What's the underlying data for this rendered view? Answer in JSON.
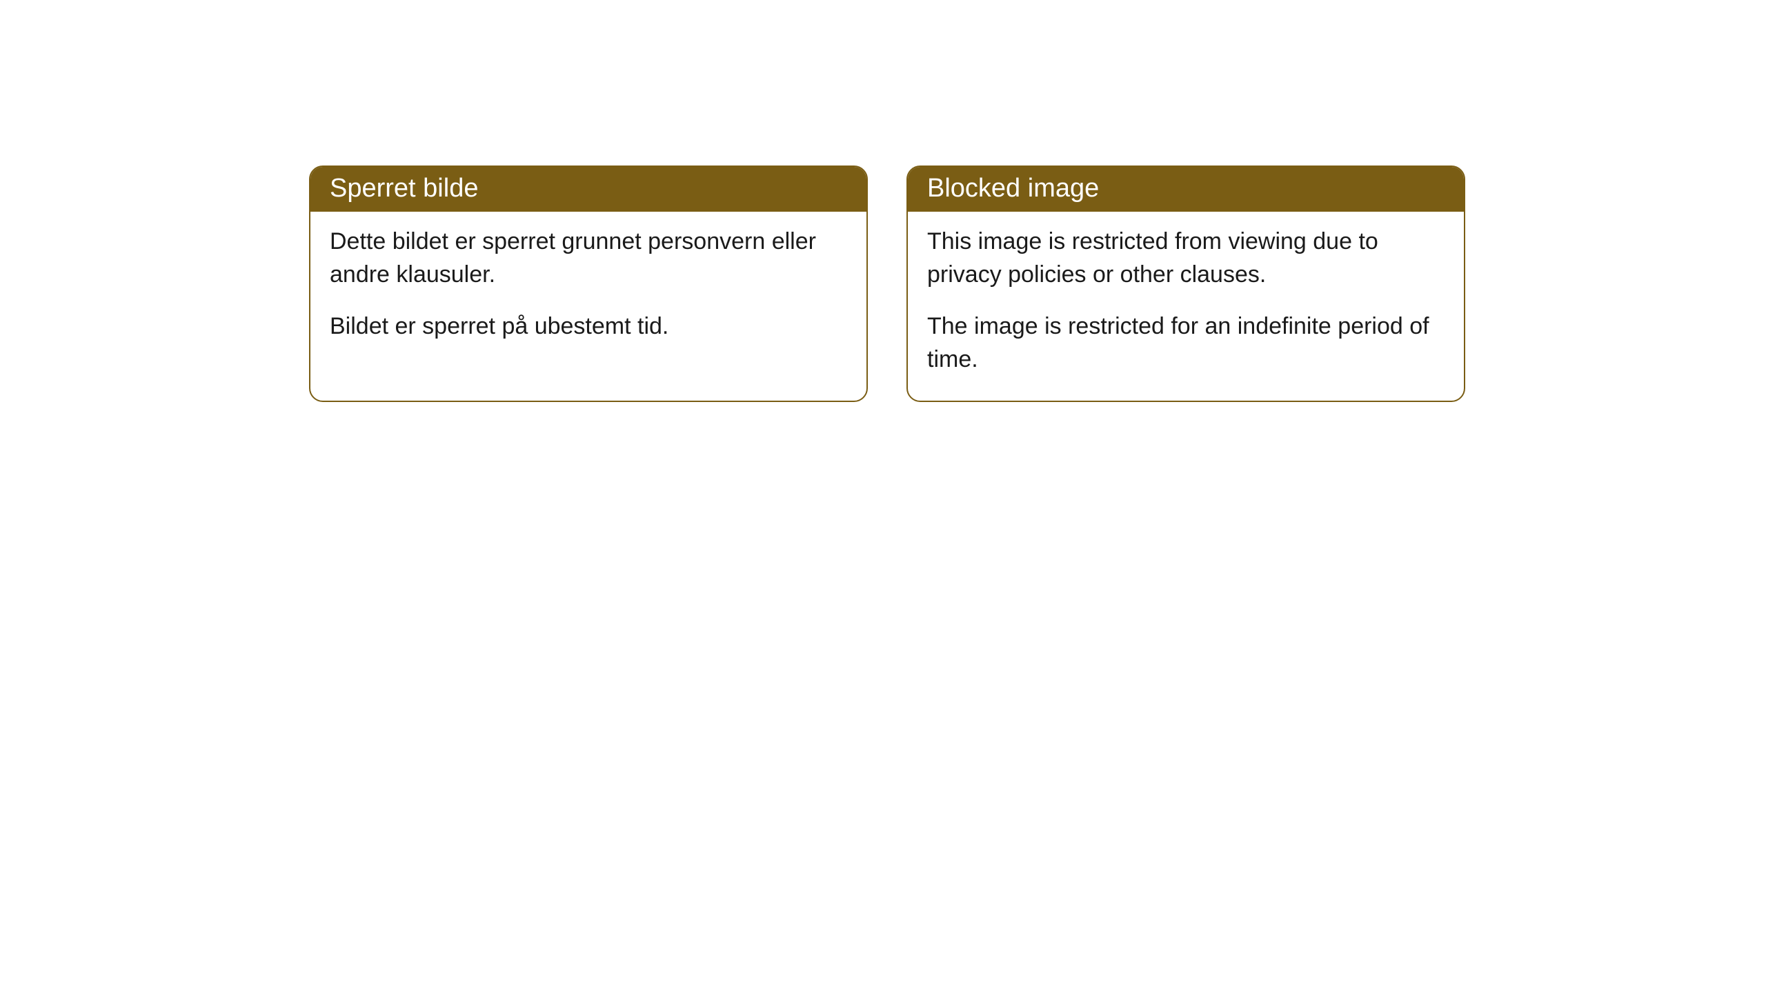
{
  "notices": {
    "norwegian": {
      "title": "Sperret bilde",
      "paragraph1": "Dette bildet er sperret grunnet personvern eller andre klausuler.",
      "paragraph2": "Bildet er sperret på ubestemt tid."
    },
    "english": {
      "title": "Blocked image",
      "paragraph1": "This image is restricted from viewing due to privacy policies or other clauses.",
      "paragraph2": "The image is restricted for an indefinite period of time."
    }
  },
  "styling": {
    "header_background": "#7a5d14",
    "header_text_color": "#ffffff",
    "border_color": "#7a5d14",
    "body_background": "#ffffff",
    "body_text_color": "#1a1a1a",
    "border_radius": 20,
    "title_fontsize": 38,
    "body_fontsize": 34
  }
}
